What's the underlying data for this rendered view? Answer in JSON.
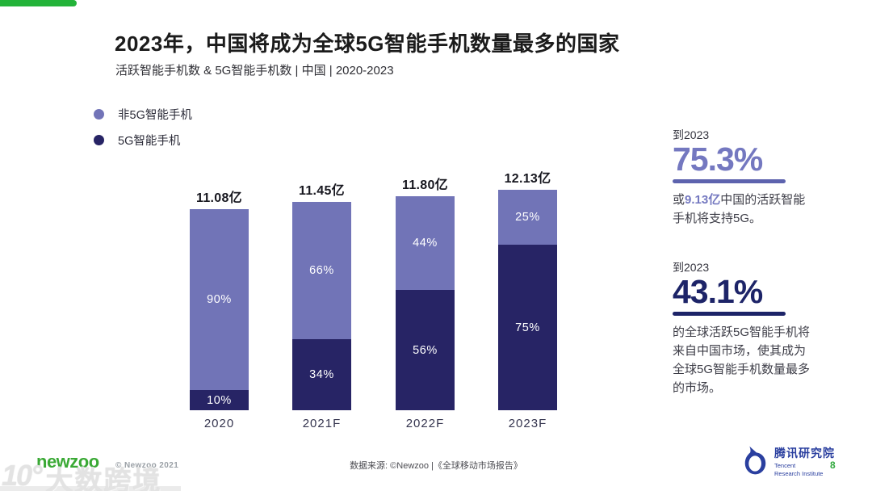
{
  "header": {
    "title": "2023年，中国将成为全球5G智能手机数量最多的国家",
    "subtitle": "活跃智能手机数 & 5G智能手机数 | 中国 | 2020-2023"
  },
  "legend": {
    "items": [
      {
        "label": "非5G智能手机",
        "color": "#7274b8"
      },
      {
        "label": "5G智能手机",
        "color": "#272465"
      }
    ]
  },
  "chart_data": {
    "type": "bar",
    "stacked": true,
    "title": "活跃智能手机数 & 5G智能手机数 | 中国 | 2020-2023",
    "categories": [
      "2020",
      "2021F",
      "2022F",
      "2023F"
    ],
    "totals": [
      11.08,
      11.45,
      11.8,
      12.13
    ],
    "total_labels": [
      "11.08亿",
      "11.45亿",
      "11.80亿",
      "12.13亿"
    ],
    "unit": "亿 (hundred million devices)",
    "series": [
      {
        "name": "非5G智能手机",
        "values": [
          90,
          66,
          44,
          25
        ],
        "labels": [
          "90%",
          "66%",
          "44%",
          "25%"
        ],
        "color": "#7174b7"
      },
      {
        "name": "5G智能手机",
        "values": [
          10,
          34,
          56,
          75
        ],
        "labels": [
          "10%",
          "34%",
          "56%",
          "75%"
        ],
        "color": "#272465"
      }
    ],
    "value_format": "percent of total",
    "grid": false,
    "legend_position": "top-left"
  },
  "stats": [
    {
      "period": "到2023",
      "value": "75.3%",
      "accent_color": "#7478c0",
      "rule_color": "#5d63ae",
      "text_prefix": "或",
      "text_highlight": "9.13亿",
      "text_rest": "中国的活跃智能\n手机将支持5G。"
    },
    {
      "period": "到2023",
      "value": "43.1%",
      "accent_color": "#1d2468",
      "rule_color": "#1d2468",
      "text_prefix": "",
      "text_highlight": "",
      "text_rest": "的全球活跃5G智能手机将\n来自中国市场，使其成为\n全球5G智能手机数量最多\n的市场。"
    }
  ],
  "footer": {
    "newzoo_logo": "newzoo",
    "copyright": "© Newzoo 2021",
    "source": "数据来源: ©Newzoo |《全球移动市场报告》",
    "tencent_cn": "腾讯研究院",
    "tencent_en_line1": "Tencent",
    "tencent_en_line2": "Research Institute",
    "page_number": "8"
  },
  "watermark": {
    "icon_glyph": "10°",
    "text": "大数跨境"
  },
  "colors": {
    "accent_green": "#23b339",
    "non5g_purple": "#7174b7",
    "fiveg_navy": "#272465",
    "stat1_purple": "#7478c0",
    "stat2_navy": "#1d2468",
    "tencent_blue": "#2a3f9f",
    "newzoo_green": "#3aa935"
  }
}
